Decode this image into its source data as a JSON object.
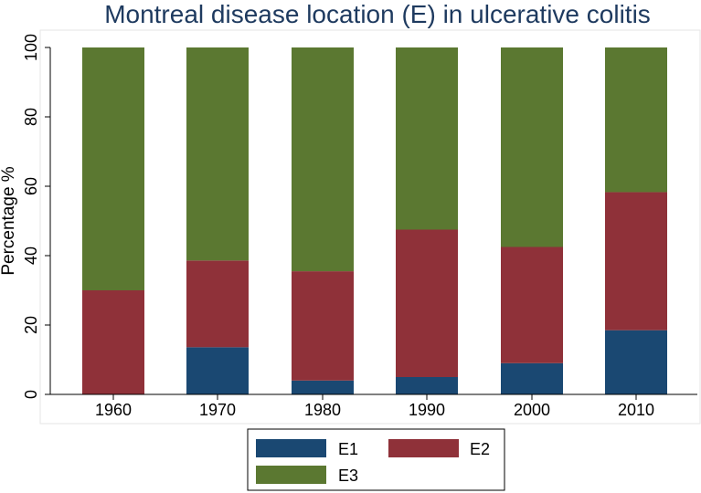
{
  "chart_data": {
    "type": "bar",
    "stacked": true,
    "title": "Montreal disease location (E) in ulcerative colitis",
    "xlabel": "",
    "ylabel": "Percentage %",
    "ylim": [
      0,
      100
    ],
    "yticks": [
      0,
      20,
      40,
      60,
      80,
      100
    ],
    "categories": [
      "1960",
      "1970",
      "1980",
      "1990",
      "2000",
      "2010"
    ],
    "series": [
      {
        "name": "E1",
        "color": "#1a4872",
        "values": [
          0,
          13.6,
          4,
          5,
          9,
          18.5
        ]
      },
      {
        "name": "E2",
        "color": "#8f3139",
        "values": [
          30,
          25,
          31.5,
          42.5,
          33.5,
          39.8
        ]
      },
      {
        "name": "E3",
        "color": "#5b7831",
        "values": [
          70,
          61.4,
          64.5,
          52.5,
          57.5,
          41.7
        ]
      }
    ],
    "grid": false,
    "legend_position": "bottom"
  }
}
